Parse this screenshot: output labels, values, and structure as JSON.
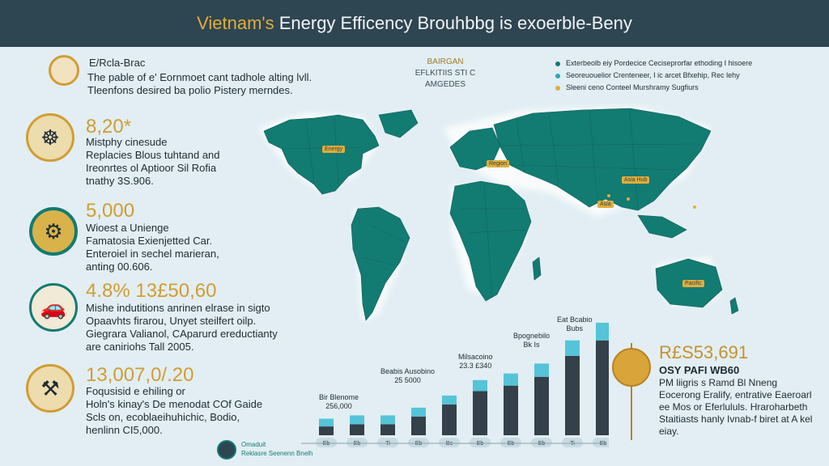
{
  "header": {
    "title_accent": "Vietnam's",
    "title_rest": " Energy Efficency Brouhbbg is exoerble-Beny"
  },
  "intro": {
    "heading": "E/Rcla-Brac",
    "text": "The pable of e' Eornmoet cant tadhole alting lvll. Tleenfons desired ba polio Pistery merndes.",
    "icon": "lightbulb-icon"
  },
  "stats": [
    {
      "value": "8,20*",
      "lines": [
        "Mistphy cinesude",
        "Replacies Blous tuhtand and",
        "Ireonrtes ol Aptioor Sil Rofia",
        "tnathy 3S.906."
      ],
      "icon": "steering-wheel-icon"
    },
    {
      "value": "5,000",
      "lines": [
        "Wioest a Unienge",
        "Famatosia Exienjetted Car.",
        "Enteroiel in sechel marieran,",
        "anting 00.606."
      ],
      "icon": "gear-plug-icon"
    },
    {
      "value": "4.8% 13£50,60",
      "lines": [
        "Mishe indutitions anrinen elrase in sigto",
        "Opaavhts firarou, Unyet steilfert oilp.",
        "Giegrara Valianol, CAparurd ereductianty",
        "are caniriohs Tall 2005."
      ],
      "icon": "vehicle-icon"
    },
    {
      "value": "13,007,0/.20",
      "lines": [
        "Foqusisid e ehiling or",
        "Holn's kinay's De menodat COf Gaide",
        "Scls on, ecoblaeihuhichic, Bodio,",
        "henlinn CI5,000."
      ],
      "icon": "engine-icon"
    }
  ],
  "map": {
    "subtitle_1": "BAIRGAN",
    "subtitle_2": "EFLKITIIS STI C AMGEDES",
    "labels": [
      "Energy",
      "Region",
      "Asia Hub",
      "Asia",
      "Pacific"
    ]
  },
  "legend": [
    {
      "label": "Exterbeolb eiy Pordecice Ceciseprorfar ethoding I hisoere",
      "color": "#127b72"
    },
    {
      "label": "Seoreuouelior Crenteneer, I ic arcet Bfxehip, Rec lehy",
      "color": "#2aa6b8"
    },
    {
      "label": "Sleeni ceno Conteel Murshramy Sugfiurs",
      "color": "#e1ad3a"
    }
  ],
  "bar_annotations": [
    {
      "title": "Bir Blenome",
      "value": "256,000"
    },
    {
      "title": "Beabis Ausobino",
      "value": "25 5000"
    },
    {
      "title": "Milsacoino",
      "value": "23.3 £340"
    },
    {
      "title": "Bpognebilo",
      "value": "Bk Is"
    },
    {
      "title": "Eat Bcabio",
      "value": "Bubs"
    }
  ],
  "chart_data": {
    "type": "bar",
    "categories": [
      "Eb",
      "Eb",
      "Ti",
      "Eb",
      "Bs",
      "Eb",
      "Eb",
      "Eb",
      "Ti",
      "Eb"
    ],
    "series": [
      {
        "values": [
          8,
          10,
          10,
          17,
          28,
          40,
          45,
          53,
          72,
          86
        ]
      },
      {
        "values": [
          7,
          8,
          8,
          8,
          8,
          10,
          11,
          12,
          14,
          16
        ]
      }
    ],
    "colors": [
      "#34404a",
      "#55c4d8"
    ],
    "ylim": [
      0,
      110
    ]
  },
  "right_panel": {
    "value": "R£S53,691",
    "subheading": "OSY PAFI WB60",
    "text": "PM liigris s Ramd Bl Nneng Eocerong Eralify, entrative Eaeroarl ee Mos or Eferlululs. Hraroharbeth Staitiasts hanly Ivnab-f biret at A kel eiay.",
    "icon": "coin-icon"
  },
  "footer": {
    "line1": "Omaduit",
    "line2": "Reklasre Seenenn Bnelh",
    "icon": "logo-icon"
  }
}
